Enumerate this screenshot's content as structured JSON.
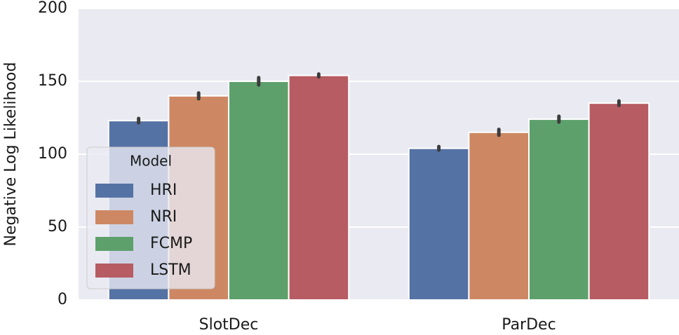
{
  "chart_data": {
    "type": "bar",
    "y_label": "Negative Log Likelihood",
    "categories": [
      "SlotDec",
      "ParDec"
    ],
    "series": [
      {
        "name": "HRI",
        "color": "#5572a5",
        "values": [
          123,
          104
        ],
        "errors": [
          1.5,
          1.2
        ]
      },
      {
        "name": "NRI",
        "color": "#cd8863",
        "values": [
          140,
          115
        ],
        "errors": [
          2,
          2
        ]
      },
      {
        "name": "FCMP",
        "color": "#5da06c",
        "values": [
          150,
          124
        ],
        "errors": [
          2.5,
          2
        ]
      },
      {
        "name": "LSTM",
        "color": "#b65c62",
        "values": [
          154,
          135
        ],
        "errors": [
          1,
          1.5
        ]
      }
    ],
    "ylim": [
      0,
      200
    ],
    "yticks": [
      0,
      50,
      100,
      150,
      200
    ],
    "grid": true,
    "legend_title": "Model",
    "legend": "lower left"
  }
}
